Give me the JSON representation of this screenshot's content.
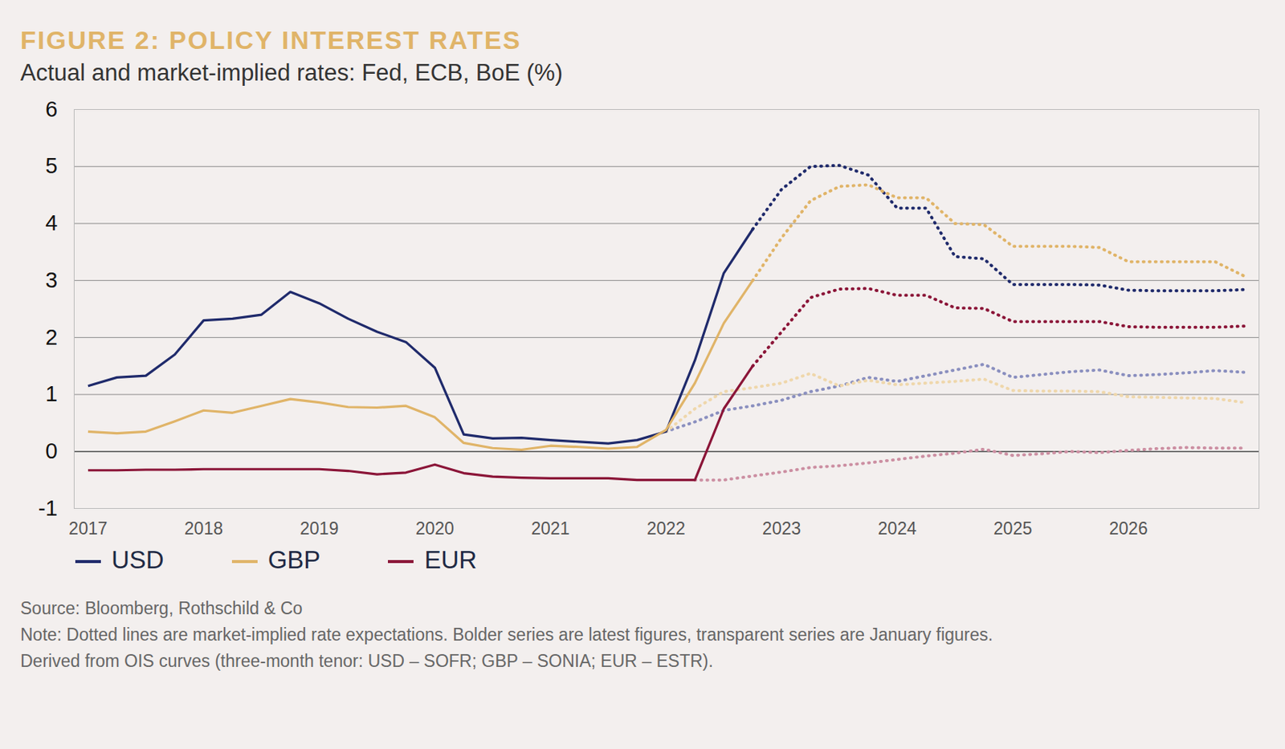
{
  "chart_data": {
    "type": "line",
    "title": "FIGURE 2: POLICY INTEREST RATES",
    "subtitle": "Actual and market-implied rates: Fed, ECB, BoE (%)",
    "source": "Source: Bloomberg, Rothschild & Co",
    "notes": [
      "Note: Dotted lines are market-implied rate expectations. Bolder series are latest figures, transparent series are January figures.",
      "Derived from OIS curves (three-month tenor: USD – SOFR; GBP – SONIA; EUR – ESTR)."
    ],
    "x": [
      2017,
      2017.25,
      2017.5,
      2017.75,
      2018,
      2018.25,
      2018.5,
      2018.75,
      2019,
      2019.25,
      2019.5,
      2019.75,
      2020,
      2020.25,
      2020.5,
      2020.75,
      2021,
      2021.25,
      2021.5,
      2021.75,
      2022,
      2022.25,
      2022.5,
      2022.75,
      2023,
      2023.25,
      2023.5,
      2023.75,
      2024,
      2024.25,
      2024.5,
      2024.75,
      2025,
      2025.25,
      2025.5,
      2025.75,
      2026,
      2026.25,
      2026.5,
      2026.75,
      2027
    ],
    "xlim": [
      2016.88,
      2027.13
    ],
    "xticks": [
      2017,
      2018,
      2019,
      2020,
      2021,
      2022,
      2023,
      2024,
      2025,
      2026
    ],
    "ylim": [
      -1,
      6
    ],
    "yticks": [
      -1,
      0,
      1,
      2,
      3,
      4,
      5,
      6
    ],
    "grid": true,
    "legend": "bottom-left",
    "series": [
      {
        "name": "USD",
        "color": "#8a8fbf",
        "line_style": "dotted",
        "values": [
          null,
          null,
          null,
          null,
          null,
          null,
          null,
          null,
          null,
          null,
          null,
          null,
          null,
          null,
          null,
          null,
          null,
          null,
          null,
          null,
          0.35,
          0.52,
          0.72,
          0.8,
          0.9,
          1.05,
          1.15,
          1.3,
          1.23,
          1.33,
          1.43,
          1.53,
          1.3,
          1.35,
          1.4,
          1.43,
          1.33,
          1.35,
          1.38,
          1.42,
          1.39
        ]
      },
      {
        "name": "GBP",
        "color": "#efd7ab",
        "line_style": "dotted",
        "values": [
          null,
          null,
          null,
          null,
          null,
          null,
          null,
          null,
          null,
          null,
          null,
          null,
          null,
          null,
          null,
          null,
          null,
          null,
          null,
          null,
          0.35,
          0.75,
          1.05,
          1.12,
          1.2,
          1.37,
          1.15,
          1.25,
          1.17,
          1.2,
          1.23,
          1.27,
          1.07,
          1.06,
          1.06,
          1.05,
          0.96,
          0.95,
          0.94,
          0.93,
          0.86
        ]
      },
      {
        "name": "EUR",
        "color": "#cc8fa2",
        "line_style": "dotted",
        "values": [
          null,
          null,
          null,
          null,
          null,
          null,
          null,
          null,
          null,
          null,
          null,
          null,
          null,
          null,
          null,
          null,
          null,
          null,
          null,
          null,
          null,
          -0.5,
          -0.5,
          -0.43,
          -0.36,
          -0.28,
          -0.25,
          -0.2,
          -0.14,
          -0.08,
          -0.03,
          0.04,
          -0.07,
          -0.04,
          0.0,
          -0.02,
          0.02,
          0.05,
          0.07,
          0.06,
          0.06
        ]
      },
      {
        "name": "USD",
        "color": "#1f2a6b",
        "line_style": "solid",
        "values": [
          1.15,
          1.3,
          1.33,
          1.7,
          2.3,
          2.33,
          2.4,
          2.8,
          2.6,
          2.33,
          2.1,
          1.92,
          1.47,
          0.3,
          0.23,
          0.24,
          0.2,
          0.17,
          0.14,
          0.2,
          0.35,
          1.6,
          3.13,
          3.9,
          null,
          null,
          null,
          null,
          null,
          null,
          null,
          null,
          null,
          null,
          null,
          null,
          null,
          null,
          null,
          null,
          null
        ]
      },
      {
        "name": "GBP",
        "color": "#e0b468",
        "line_style": "solid",
        "values": [
          0.35,
          0.32,
          0.35,
          0.53,
          0.72,
          0.68,
          0.8,
          0.92,
          0.86,
          0.78,
          0.77,
          0.8,
          0.6,
          0.15,
          0.06,
          0.03,
          0.1,
          0.08,
          0.05,
          0.08,
          0.38,
          1.2,
          2.25,
          3.0,
          null,
          null,
          null,
          null,
          null,
          null,
          null,
          null,
          null,
          null,
          null,
          null,
          null,
          null,
          null,
          null,
          null
        ]
      },
      {
        "name": "EUR",
        "color": "#8b1538",
        "line_style": "solid",
        "values": [
          -0.33,
          -0.33,
          -0.32,
          -0.32,
          -0.31,
          -0.31,
          -0.31,
          -0.31,
          -0.31,
          -0.34,
          -0.4,
          -0.37,
          -0.23,
          -0.38,
          -0.44,
          -0.46,
          -0.47,
          -0.47,
          -0.47,
          -0.5,
          -0.5,
          -0.5,
          0.75,
          1.5,
          null,
          null,
          null,
          null,
          null,
          null,
          null,
          null,
          null,
          null,
          null,
          null,
          null,
          null,
          null,
          null,
          null
        ]
      },
      {
        "name": "USD",
        "color": "#1f2a6b",
        "line_style": "dotted",
        "values": [
          null,
          null,
          null,
          null,
          null,
          null,
          null,
          null,
          null,
          null,
          null,
          null,
          null,
          null,
          null,
          null,
          null,
          null,
          null,
          null,
          null,
          null,
          null,
          3.9,
          4.6,
          5.0,
          5.02,
          4.85,
          4.27,
          4.27,
          3.42,
          3.38,
          2.93,
          2.93,
          2.93,
          2.92,
          2.83,
          2.82,
          2.82,
          2.82,
          2.84
        ]
      },
      {
        "name": "GBP",
        "color": "#e0b468",
        "line_style": "dotted",
        "values": [
          null,
          null,
          null,
          null,
          null,
          null,
          null,
          null,
          null,
          null,
          null,
          null,
          null,
          null,
          null,
          null,
          null,
          null,
          null,
          null,
          null,
          null,
          null,
          3.0,
          3.75,
          4.4,
          4.65,
          4.68,
          4.45,
          4.45,
          4.0,
          3.98,
          3.6,
          3.6,
          3.6,
          3.58,
          3.33,
          3.33,
          3.33,
          3.33,
          3.08
        ]
      },
      {
        "name": "EUR",
        "color": "#8b1538",
        "line_style": "dotted",
        "values": [
          null,
          null,
          null,
          null,
          null,
          null,
          null,
          null,
          null,
          null,
          null,
          null,
          null,
          null,
          null,
          null,
          null,
          null,
          null,
          null,
          null,
          null,
          null,
          1.5,
          2.1,
          2.7,
          2.85,
          2.86,
          2.74,
          2.74,
          2.52,
          2.51,
          2.28,
          2.28,
          2.28,
          2.28,
          2.19,
          2.18,
          2.18,
          2.18,
          2.2
        ]
      }
    ]
  }
}
